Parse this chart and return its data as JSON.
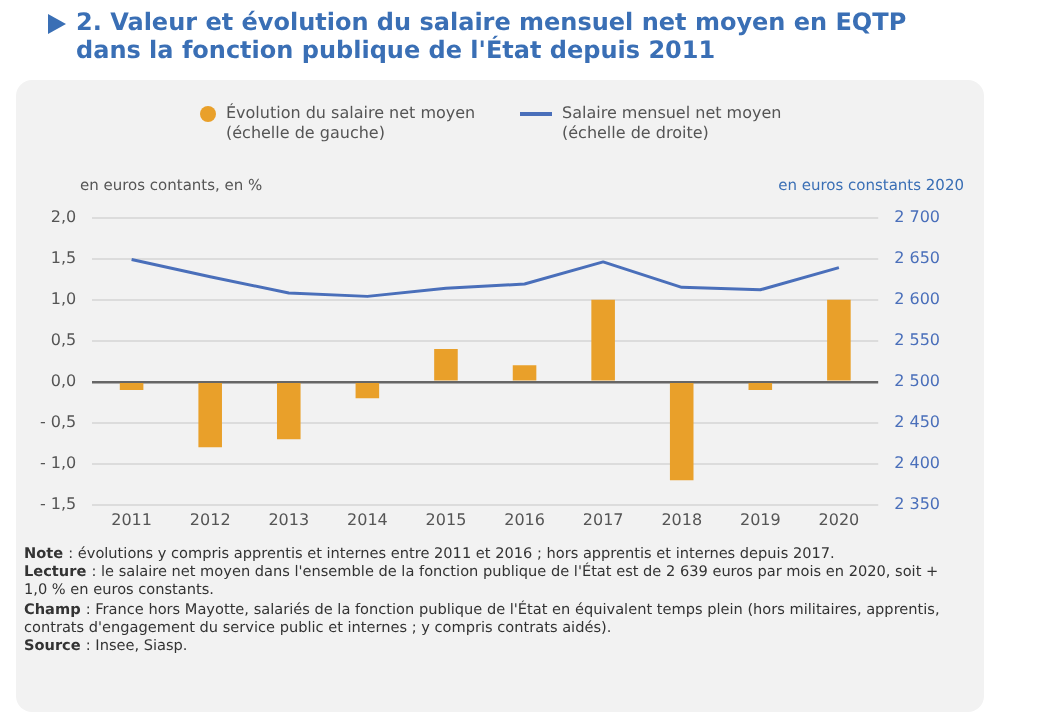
{
  "chart_data": {
    "type": "bar",
    "title": "2. Valeur et évolution du salaire mensuel net moyen en EQTP dans la fonction publique de l'État depuis 2011",
    "ylabel": "en euros contants, en %",
    "y2label": "en euros constants 2020",
    "categories": [
      "2011",
      "2012",
      "2013",
      "2014",
      "2015",
      "2016",
      "2017",
      "2018",
      "2019",
      "2020"
    ],
    "series": [
      {
        "name": "Évolution du salaire net moyen (échelle de gauche)",
        "color": "#e9a02a",
        "values": [
          -0.1,
          -0.8,
          -0.7,
          -0.2,
          0.4,
          0.2,
          1.0,
          -1.2,
          -0.1,
          1.0
        ]
      },
      {
        "name": "Salaire mensuel net moyen (échelle de droite)",
        "type": "line",
        "axis": "y2",
        "color": "#4a6fba",
        "values": [
          2649,
          2628,
          2608,
          2604,
          2614,
          2619,
          2646,
          2615,
          2612,
          2639
        ]
      }
    ],
    "ylim": [
      -1.5,
      2.0
    ],
    "yticks": [
      {
        "value": -1.5,
        "label": "- 1,5"
      },
      {
        "value": -1.0,
        "label": "- 1,0"
      },
      {
        "value": -0.5,
        "label": "- 0,5"
      },
      {
        "value": 0,
        "label": "0,0"
      },
      {
        "value": 0.5,
        "label": "0,5"
      },
      {
        "value": 1.0,
        "label": "1,0"
      },
      {
        "value": 1.5,
        "label": "1,5"
      },
      {
        "value": 2.0,
        "label": "2,0"
      }
    ],
    "y2lim": [
      2350,
      2700
    ],
    "y2ticks": [
      {
        "value": 2350,
        "label": "2 350"
      },
      {
        "value": 2400,
        "label": "2 400"
      },
      {
        "value": 2450,
        "label": "2 450"
      },
      {
        "value": 2500,
        "label": "2 500"
      },
      {
        "value": 2550,
        "label": "2 550"
      },
      {
        "value": 2600,
        "label": "2 600"
      },
      {
        "value": 2650,
        "label": "2 650"
      },
      {
        "value": 2700,
        "label": "2 700"
      }
    ],
    "grid": "y",
    "legend": "top",
    "marker": "none",
    "line_style": "solid",
    "annotations": [
      "Note : évolutions y compris apprentis et internes entre 2011 et 2016 ; hors apprentis et internes depuis 2017.",
      "Lecture : le salaire net moyen dans l'ensemble de la fonction publique de l'État est de 2 639 euros par mois en 2020, soit + 1,0 % en euros constants.",
      "Champ : France hors Mayotte, salariés de la fonction publique de l'État en équivalent temps plein (hors militaires, apprentis, contrats d'engagement du service public et internes ; y compris contrats aidés).",
      "Source : Insee, Siasp."
    ]
  }
}
